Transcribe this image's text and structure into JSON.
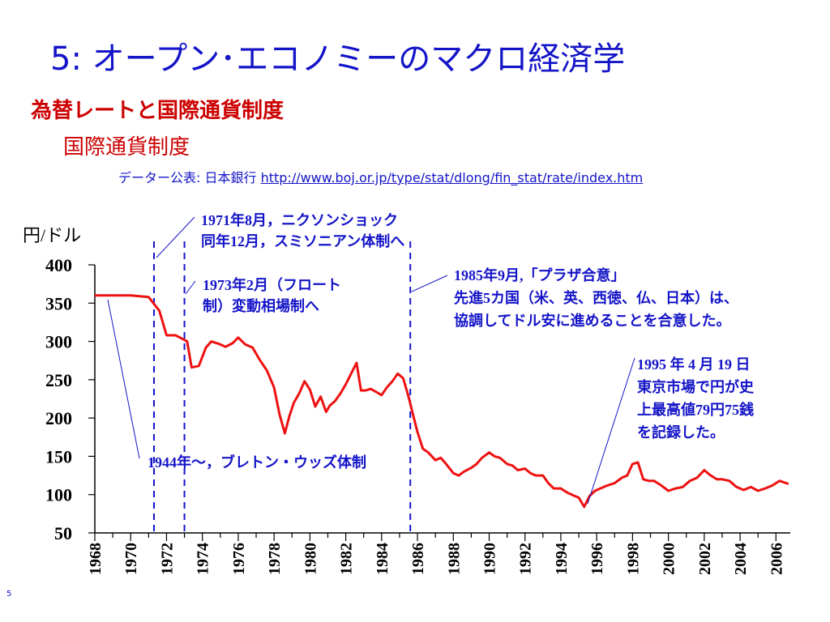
{
  "slide": {
    "title": "5: オープン･エコノミーのマクロ経済学",
    "section": "為替レートと国際通貨制度",
    "subsection": "国際通貨制度",
    "source_prefix": "データー公表: 日本銀行 ",
    "source_url": "http://www.boj.or.jp/type/stat/dlong/fin_stat/rate/index.htm",
    "page_number": "5"
  },
  "chart_data": {
    "type": "line",
    "title": "",
    "xlabel": "",
    "ylabel": "円/ドル",
    "xlim": [
      1968,
      2006.8
    ],
    "ylim": [
      50,
      400
    ],
    "y_ticks": [
      400,
      350,
      300,
      250,
      200,
      150,
      100,
      50
    ],
    "x_ticks": [
      1968,
      1970,
      1972,
      1974,
      1976,
      1978,
      1980,
      1982,
      1984,
      1986,
      1988,
      1990,
      1992,
      1994,
      1996,
      1998,
      2000,
      2002,
      2004,
      2006
    ],
    "grid": false,
    "colors": {
      "series": "#ee1111",
      "annotation": "#1414c8",
      "axis": "#000000"
    },
    "series": [
      {
        "name": "",
        "x": [
          1968,
          1969,
          1970,
          1971.0,
          1971.6,
          1972,
          1972.5,
          1973.0,
          1973.15,
          1973.4,
          1973.8,
          1974.2,
          1974.5,
          1974.9,
          1975.3,
          1975.7,
          1976.0,
          1976.4,
          1976.8,
          1977.2,
          1977.6,
          1978.0,
          1978.3,
          1978.6,
          1978.85,
          1979.1,
          1979.4,
          1979.7,
          1980.0,
          1980.3,
          1980.6,
          1980.9,
          1981.1,
          1981.4,
          1981.7,
          1982.0,
          1982.3,
          1982.6,
          1982.85,
          1983.1,
          1983.4,
          1983.7,
          1984.0,
          1984.3,
          1984.6,
          1984.9,
          1985.2,
          1985.5,
          1985.8,
          1986.0,
          1986.3,
          1986.6,
          1987.0,
          1987.3,
          1987.6,
          1988.0,
          1988.3,
          1988.6,
          1989.0,
          1989.3,
          1989.6,
          1990.0,
          1990.3,
          1990.6,
          1991.0,
          1991.3,
          1991.6,
          1992.0,
          1992.3,
          1992.6,
          1993.0,
          1993.3,
          1993.6,
          1994.0,
          1994.4,
          1994.8,
          1995.0,
          1995.3,
          1995.6,
          1995.9,
          1996.2,
          1996.6,
          1997.0,
          1997.4,
          1997.7,
          1998.0,
          1998.3,
          1998.6,
          1998.9,
          1999.2,
          1999.6,
          2000.0,
          2000.4,
          2000.8,
          2001.2,
          2001.6,
          2002.0,
          2002.3,
          2002.7,
          2003.0,
          2003.4,
          2003.8,
          2004.2,
          2004.6,
          2005.0,
          2005.4,
          2005.8,
          2006.2,
          2006.7
        ],
        "values": [
          360,
          360,
          360,
          358,
          340,
          308,
          308,
          302,
          300,
          266,
          268,
          292,
          300,
          297,
          293,
          298,
          305,
          296,
          292,
          276,
          262,
          240,
          205,
          180,
          202,
          220,
          232,
          248,
          237,
          215,
          228,
          208,
          216,
          222,
          232,
          244,
          258,
          272,
          236,
          236,
          238,
          234,
          230,
          240,
          248,
          258,
          252,
          228,
          200,
          182,
          160,
          155,
          145,
          148,
          140,
          128,
          125,
          130,
          135,
          140,
          148,
          155,
          150,
          148,
          140,
          138,
          132,
          134,
          128,
          125,
          125,
          115,
          108,
          108,
          102,
          98,
          96,
          84,
          98,
          105,
          108,
          112,
          115,
          122,
          125,
          140,
          142,
          120,
          118,
          118,
          112,
          105,
          108,
          110,
          118,
          122,
          132,
          126,
          120,
          120,
          118,
          110,
          106,
          110,
          105,
          108,
          112,
          118,
          114
        ]
      }
    ],
    "regime_lines_year": [
      1971.3,
      1973.0,
      1985.6
    ],
    "annotations": [
      {
        "line1": "1971年8月，ニクソンショック",
        "line2": "同年12月，スミソニアン体制へ"
      },
      {
        "line1": "1973年2月（フロート",
        "line2": "制）変動相場制へ"
      },
      {
        "line1": "1985年9月,「プラザ合意」",
        "line2": "先進5カ国（米、英、西徳、仏、日本）は、",
        "line3": "協調してドル安に進めることを合意した。"
      },
      {
        "line1": "1995 年 4 月 19 日",
        "line2": "東京市場で円が史",
        "line3": "上最高値79円75銭",
        "line4": "を記録した。"
      },
      {
        "line1": "1944年～，ブレトン・ウッズ体制"
      }
    ]
  }
}
